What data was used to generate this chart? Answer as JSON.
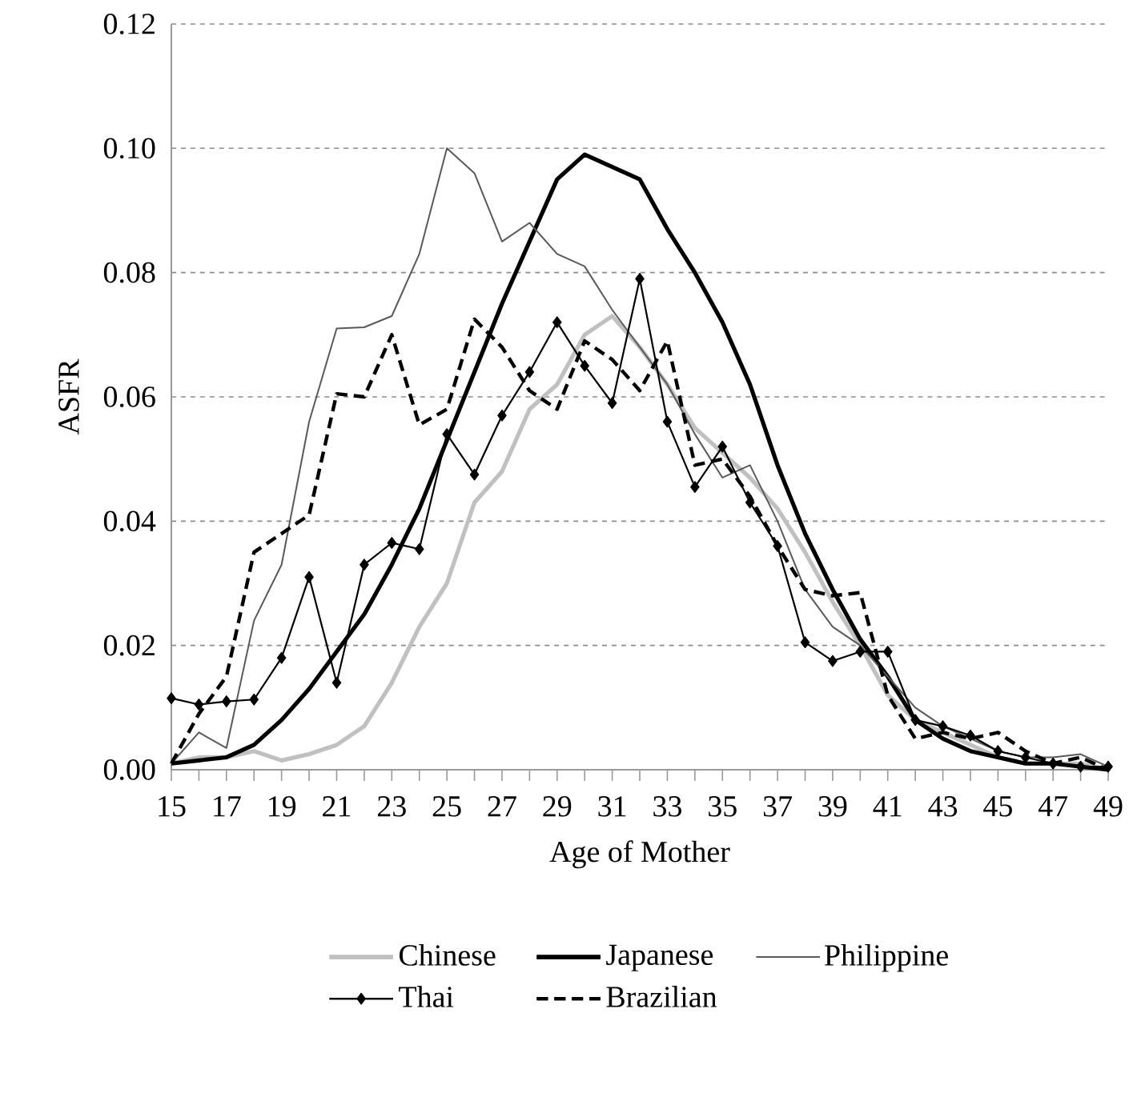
{
  "chart_data": {
    "type": "line",
    "xlabel": "Age of Mother",
    "ylabel": "ASFR",
    "x": [
      15,
      16,
      17,
      18,
      19,
      20,
      21,
      22,
      23,
      24,
      25,
      26,
      27,
      28,
      29,
      30,
      31,
      32,
      33,
      34,
      35,
      36,
      37,
      38,
      39,
      40,
      41,
      42,
      43,
      44,
      45,
      46,
      47,
      48,
      49
    ],
    "xlim": [
      15,
      49
    ],
    "xticks": [
      15,
      {
        "value": 16,
        "label": null
      },
      17,
      {
        "value": 18,
        "label": null
      },
      19,
      {
        "value": 20,
        "label": null
      },
      21,
      {
        "value": 22,
        "label": null
      },
      23,
      {
        "value": 24,
        "label": null
      },
      25,
      {
        "value": 26,
        "label": null
      },
      27,
      {
        "value": 28,
        "label": null
      },
      29,
      {
        "value": 30,
        "label": null
      },
      31,
      {
        "value": 32,
        "label": null
      },
      33,
      {
        "value": 34,
        "label": null
      },
      35,
      {
        "value": 36,
        "label": null
      },
      37,
      {
        "value": 38,
        "label": null
      },
      39,
      {
        "value": 40,
        "label": null
      },
      41,
      {
        "value": 42,
        "label": null
      },
      43,
      {
        "value": 44,
        "label": null
      },
      45,
      {
        "value": 46,
        "label": null
      },
      47,
      {
        "value": 48,
        "label": null
      },
      49
    ],
    "ylim": [
      0,
      0.12
    ],
    "yticks": [
      {
        "value": 0,
        "label": "0.00"
      },
      {
        "value": 0.02,
        "label": "0.02"
      },
      {
        "value": 0.04,
        "label": "0.04"
      },
      {
        "value": 0.06,
        "label": "0.06"
      },
      {
        "value": 0.08,
        "label": "0.08"
      },
      {
        "value": 0.1,
        "label": "0.10"
      },
      {
        "value": 0.12,
        "label": "0.12"
      }
    ],
    "grid": "y",
    "legend": "bottom",
    "series": [
      {
        "name": "Chinese",
        "color": "#c0c0c0",
        "values": [
          0.001,
          0.002,
          0.002,
          0.003,
          0.0015,
          0.0025,
          0.004,
          0.007,
          0.014,
          0.023,
          0.03,
          0.043,
          0.048,
          0.058,
          0.062,
          0.07,
          0.073,
          0.068,
          0.062,
          0.055,
          0.051,
          0.047,
          0.042,
          0.035,
          0.027,
          0.02,
          0.012,
          0.008,
          0.006,
          0.004,
          0.002,
          0.001,
          0.001,
          0.001,
          0
        ]
      },
      {
        "name": "Japanese",
        "color": "#000000",
        "values": [
          0.001,
          0.0015,
          0.002,
          0.004,
          0.008,
          0.013,
          0.019,
          0.025,
          0.033,
          0.042,
          0.053,
          0.064,
          0.075,
          0.085,
          0.095,
          0.099,
          0.097,
          0.095,
          0.087,
          0.08,
          0.072,
          0.062,
          0.049,
          0.038,
          0.029,
          0.021,
          0.015,
          0.008,
          0.005,
          0.003,
          0.002,
          0.001,
          0.001,
          0.0005,
          0
        ]
      },
      {
        "name": "Philippine",
        "color": "#595959",
        "values": [
          0.001,
          0.006,
          0.0035,
          0.024,
          0.033,
          0.056,
          0.071,
          0.0712,
          0.073,
          0.083,
          0.1,
          0.096,
          0.085,
          0.088,
          0.083,
          0.081,
          0.074,
          0.068,
          0.062,
          0.054,
          0.047,
          0.049,
          0.04,
          0.029,
          0.023,
          0.02,
          0.015,
          0.01,
          0.007,
          0.005,
          0.003,
          0.002,
          0.002,
          0.0025,
          0.0005
        ]
      },
      {
        "name": "Thai",
        "color": "#000000",
        "marker": "diamond",
        "values": [
          0.0115,
          0.0105,
          0.011,
          0.0113,
          0.018,
          0.031,
          0.014,
          0.033,
          0.0365,
          0.0355,
          0.054,
          0.0475,
          0.057,
          0.064,
          0.072,
          0.065,
          0.059,
          0.079,
          0.056,
          0.0455,
          0.052,
          0.043,
          0.036,
          0.0205,
          0.0175,
          0.019,
          0.019,
          0.008,
          0.007,
          0.0055,
          0.003,
          0.002,
          0.001,
          0.0005,
          0.0005
        ]
      },
      {
        "name": "Brazilian",
        "color": "#000000",
        "line_style": "dashed",
        "values": [
          0.001,
          0.009,
          0.015,
          0.035,
          0.038,
          0.041,
          0.0605,
          0.06,
          0.07,
          0.0555,
          0.058,
          0.0725,
          0.068,
          0.061,
          0.058,
          0.069,
          0.066,
          0.061,
          0.069,
          0.049,
          0.05,
          0.044,
          0.036,
          0.029,
          0.028,
          0.0285,
          0.012,
          0.005,
          0.006,
          0.005,
          0.006,
          0.003,
          0.001,
          0.002,
          0
        ]
      }
    ]
  }
}
